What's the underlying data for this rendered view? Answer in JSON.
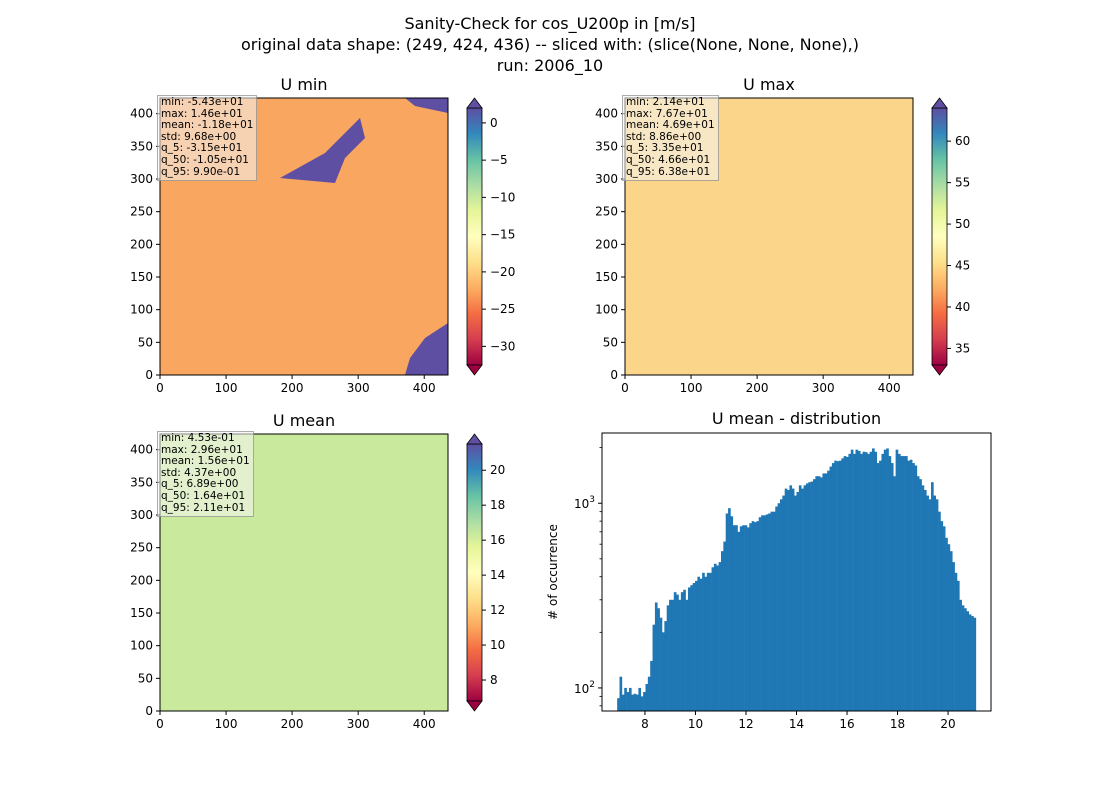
{
  "figure": {
    "suptitle_line1": "Sanity-Check for cos_U200p in [m/s]",
    "suptitle_line2": "original data shape: (249, 424, 436) -- sliced with: (slice(None, None, None),)",
    "suptitle_line3": "run: 2006_10"
  },
  "colormap": "Spectral",
  "panels": [
    {
      "title": "U min",
      "stats": [
        "min: -5.43e+01",
        "max: 1.46e+01",
        "mean: -1.18e+01",
        "std: 9.68e+00",
        "q_5: -3.15e+01",
        "q_50: -1.05e+01",
        "q_95: 9.90e-01"
      ],
      "x_ticks": [
        "0",
        "100",
        "200",
        "300",
        "400"
      ],
      "y_ticks": [
        "0",
        "50",
        "100",
        "150",
        "200",
        "250",
        "300",
        "350",
        "400"
      ],
      "colorbar_ticks": [
        "0",
        "−5",
        "−10",
        "−15",
        "−20",
        "−25",
        "−30"
      ],
      "colorbar_range": [
        -32.5,
        2.0
      ]
    },
    {
      "title": "U max",
      "stats": [
        "min: 2.14e+01",
        "max: 7.67e+01",
        "mean: 4.69e+01",
        "std: 8.86e+00",
        "q_5: 3.35e+01",
        "q_50: 4.66e+01",
        "q_95: 6.38e+01"
      ],
      "x_ticks": [
        "0",
        "100",
        "200",
        "300",
        "400"
      ],
      "y_ticks": [
        "0",
        "50",
        "100",
        "150",
        "200",
        "250",
        "300",
        "350",
        "400"
      ],
      "colorbar_ticks": [
        "35",
        "40",
        "45",
        "50",
        "55",
        "60"
      ],
      "colorbar_range": [
        33.0,
        64.0
      ]
    },
    {
      "title": "U mean",
      "stats": [
        "min: 4.53e-01",
        "max: 2.96e+01",
        "mean: 1.56e+01",
        "std: 4.37e+00",
        "q_5: 6.89e+00",
        "q_50: 1.64e+01",
        "q_95: 2.11e+01"
      ],
      "x_ticks": [
        "0",
        "100",
        "200",
        "300",
        "400"
      ],
      "y_ticks": [
        "0",
        "50",
        "100",
        "150",
        "200",
        "250",
        "300",
        "350",
        "400"
      ],
      "colorbar_ticks": [
        "8",
        "10",
        "12",
        "14",
        "16",
        "18",
        "20"
      ],
      "colorbar_range": [
        6.8,
        21.5
      ]
    }
  ],
  "chart_data": {
    "type": "bar",
    "title": "U mean - distribution",
    "xlabel": "",
    "ylabel": "# of occurrence",
    "yscale": "log",
    "xlim": [
      6.3,
      21.7
    ],
    "ylim": [
      75,
      2400
    ],
    "x_ticks": [
      "8",
      "10",
      "12",
      "14",
      "16",
      "18",
      "20"
    ],
    "y_ticks": [
      "10^2",
      "10^3"
    ],
    "color": "#1f77b4",
    "bin_range": [
      6.9,
      21.1
    ],
    "values": [
      88,
      115,
      92,
      100,
      95,
      100,
      92,
      93,
      92,
      100,
      90,
      95,
      105,
      115,
      140,
      220,
      290,
      270,
      240,
      200,
      230,
      280,
      300,
      300,
      330,
      320,
      300,
      330,
      340,
      300,
      350,
      360,
      370,
      380,
      400,
      390,
      420,
      400,
      420,
      420,
      450,
      470,
      460,
      480,
      550,
      620,
      880,
      940,
      850,
      760,
      760,
      700,
      750,
      760,
      760,
      740,
      780,
      800,
      790,
      800,
      840,
      860,
      860,
      870,
      880,
      900,
      900,
      960,
      1000,
      1050,
      1100,
      1200,
      1180,
      1250,
      1200,
      1100,
      1150,
      1250,
      1200,
      1250,
      1280,
      1300,
      1310,
      1350,
      1400,
      1400,
      1380,
      1450,
      1450,
      1500,
      1580,
      1650,
      1700,
      1690,
      1700,
      1750,
      1800,
      1780,
      1850,
      1950,
      1850,
      1950,
      1920,
      1850,
      1900,
      1890,
      1850,
      1900,
      1980,
      1900,
      1650,
      1700,
      1850,
      1950,
      1980,
      1800,
      1650,
      1400,
      1950,
      1850,
      1800,
      1800,
      1800,
      1700,
      1720,
      1650,
      1600,
      1400,
      1350,
      1250,
      1180,
      1100,
      1050,
      1300,
      1100,
      1050,
      900,
      800,
      750,
      650,
      600,
      550,
      480,
      420,
      380,
      300,
      280,
      270,
      260,
      250,
      245,
      240
    ]
  }
}
